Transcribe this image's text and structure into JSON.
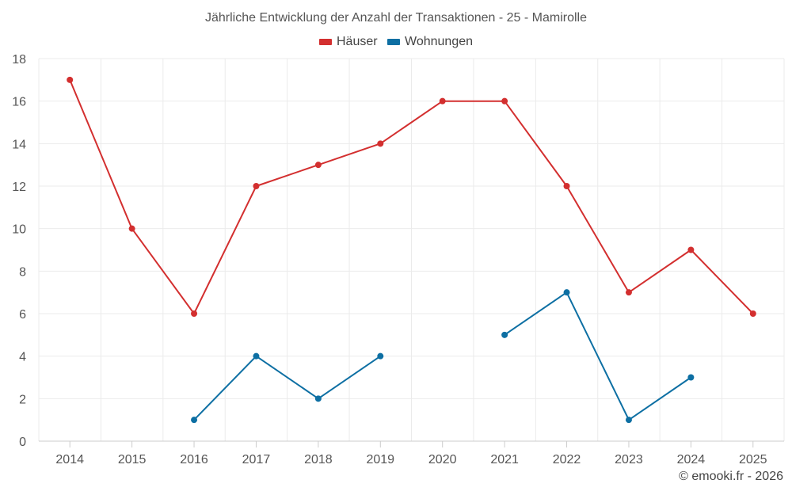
{
  "chart_data": {
    "type": "line",
    "title": "Jährliche Entwicklung der Anzahl der Transaktionen - 25 - Mamirolle",
    "categories": [
      "2014",
      "2015",
      "2016",
      "2017",
      "2018",
      "2019",
      "2020",
      "2021",
      "2022",
      "2023",
      "2024",
      "2025"
    ],
    "series": [
      {
        "name": "Häuser",
        "color": "#d32f2f",
        "values": [
          17,
          10,
          6,
          12,
          13,
          14,
          16,
          16,
          12,
          7,
          9,
          6
        ]
      },
      {
        "name": "Wohnungen",
        "color": "#0d6fa3",
        "values": [
          null,
          null,
          1,
          4,
          2,
          4,
          null,
          5,
          7,
          1,
          3,
          null
        ]
      }
    ],
    "xlabel": "",
    "ylabel": "",
    "ylim": [
      0,
      18
    ],
    "yticks": [
      "0",
      "2",
      "4",
      "6",
      "8",
      "10",
      "12",
      "14",
      "16",
      "18"
    ],
    "grid": true,
    "legend_position": "top-center"
  },
  "footer": {
    "copyright": "© emooki.fr - 2026"
  }
}
